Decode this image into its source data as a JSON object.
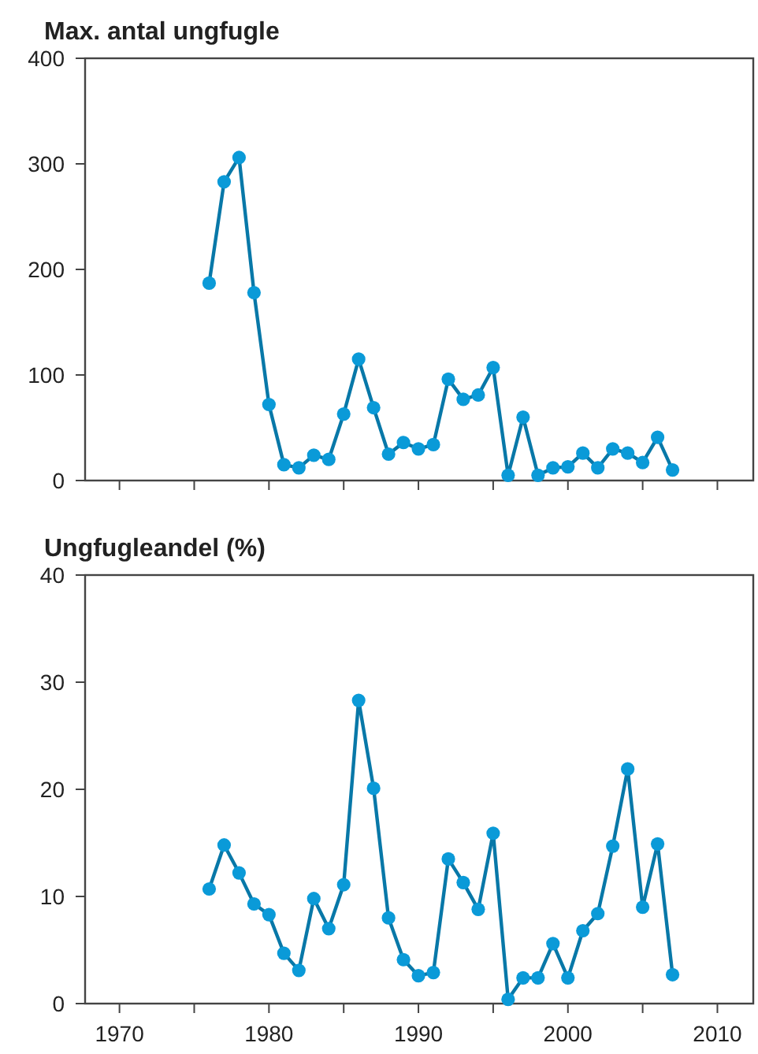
{
  "chart_data": [
    {
      "type": "line",
      "title": "Max. antal ungfugle",
      "x": [
        1976,
        1977,
        1978,
        1979,
        1980,
        1981,
        1982,
        1983,
        1984,
        1985,
        1986,
        1987,
        1988,
        1989,
        1990,
        1991,
        1992,
        1993,
        1994,
        1995,
        1996,
        1997,
        1998,
        1999,
        2000,
        2001,
        2002,
        2003,
        2004,
        2005,
        2006,
        2007
      ],
      "series": [
        {
          "color": "#0a9ad8",
          "values": [
            187,
            283,
            306,
            178,
            72,
            15,
            12,
            24,
            20,
            63,
            115,
            69,
            25,
            36,
            30,
            34,
            96,
            77,
            81,
            107,
            5,
            60,
            5,
            12,
            13,
            26,
            12,
            30,
            26,
            17,
            41,
            10
          ]
        }
      ],
      "xlim": [
        1967.7,
        2012.4
      ],
      "xticks": [
        {
          "value": 1970,
          "label": null
        },
        {
          "value": 1975,
          "label": null
        },
        {
          "value": 1980,
          "label": null
        },
        {
          "value": 1985,
          "label": null
        },
        {
          "value": 1990,
          "label": null
        },
        {
          "value": 1995,
          "label": null
        },
        {
          "value": 2000,
          "label": null
        },
        {
          "value": 2005,
          "label": null
        },
        {
          "value": 2010,
          "label": null
        }
      ],
      "ylim": [
        0,
        400
      ],
      "yticks": [
        0,
        100,
        200,
        300,
        400
      ],
      "tick_labels": "y",
      "marker": "circle"
    },
    {
      "type": "line",
      "title": "Ungfugleandel (%)",
      "x": [
        1976,
        1977,
        1978,
        1979,
        1980,
        1981,
        1982,
        1983,
        1984,
        1985,
        1986,
        1987,
        1988,
        1989,
        1990,
        1991,
        1992,
        1993,
        1994,
        1995,
        1996,
        1997,
        1998,
        1999,
        2000,
        2001,
        2002,
        2003,
        2004,
        2005,
        2006,
        2007
      ],
      "series": [
        {
          "color": "#0a9ad8",
          "values": [
            10.7,
            14.8,
            12.2,
            9.3,
            8.3,
            4.7,
            3.1,
            9.8,
            7.0,
            11.1,
            28.3,
            20.1,
            8.0,
            4.1,
            2.6,
            2.9,
            13.5,
            11.3,
            8.8,
            15.9,
            0.4,
            2.4,
            2.4,
            5.6,
            2.4,
            6.8,
            8.4,
            14.7,
            21.9,
            9.0,
            14.9,
            2.7
          ]
        }
      ],
      "xlim": [
        1967.7,
        2012.4
      ],
      "xticks": [
        1970,
        {
          "value": 1975,
          "label": null
        },
        1980,
        {
          "value": 1985,
          "label": null
        },
        1990,
        {
          "value": 1995,
          "label": null
        },
        2000,
        {
          "value": 2005,
          "label": null
        },
        2010
      ],
      "ylim": [
        0,
        40
      ],
      "yticks": [
        0,
        10,
        20,
        30,
        40
      ],
      "marker": "circle"
    }
  ]
}
